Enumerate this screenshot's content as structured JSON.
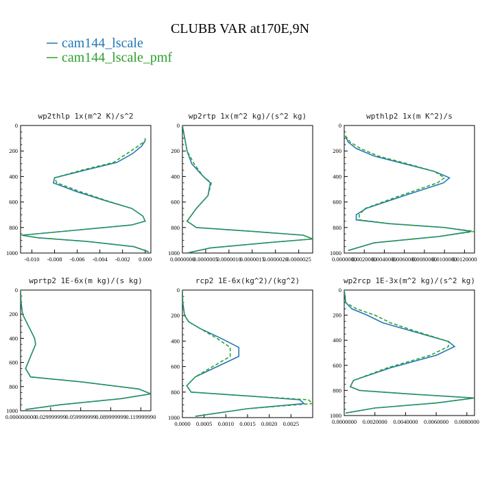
{
  "header": {
    "title": "CLUBB VAR at170E,9N"
  },
  "legend": {
    "items": [
      {
        "label": "cam144_lscale",
        "color": "#1f77b4",
        "dash": "solid"
      },
      {
        "label": "cam144_lscale_pmf",
        "color": "#2ca02c",
        "dash": "dashed"
      }
    ]
  },
  "chart_data": [
    {
      "type": "line",
      "title": "wp2thlp  1x(m^2 K)/s^2",
      "xlim": [
        -0.011,
        0.0005
      ],
      "ylim": [
        1000,
        0
      ],
      "xticks": [
        -0.01,
        -0.008,
        -0.006,
        -0.004,
        -0.002,
        0.0
      ],
      "xtick_labels": [
        "-0.010",
        "-0.008",
        "-0.006",
        "-0.004",
        "-0.002",
        "0.000"
      ],
      "yticks": [
        0,
        200,
        400,
        600,
        800,
        1000
      ],
      "ytick_labels": [
        "0",
        "200",
        "400",
        "600",
        "800",
        "1000"
      ],
      "series": [
        {
          "name": "cam144_lscale",
          "x": [
            0,
            0,
            -0.0003,
            -0.0011,
            -0.0025,
            -0.0053,
            -0.008,
            -0.0081,
            -0.006,
            -0.0035,
            -0.0012,
            -0.0002,
            0.0,
            -0.0012,
            -0.006,
            -0.0109,
            -0.0095,
            -0.005,
            -0.001,
            0.0003
          ],
          "y": [
            100,
            120,
            160,
            220,
            290,
            350,
            410,
            450,
            520,
            590,
            650,
            710,
            750,
            780,
            820,
            860,
            880,
            910,
            950,
            990
          ]
        },
        {
          "name": "cam144_lscale_pmf",
          "x": [
            0,
            0,
            -0.0006,
            -0.0016,
            -0.0028,
            -0.0056,
            -0.008,
            -0.0078,
            -0.0057,
            -0.0034,
            -0.0012,
            -0.0002,
            0.0,
            -0.0012,
            -0.006,
            -0.0109,
            -0.0095,
            -0.005,
            -0.001,
            0.0003
          ],
          "y": [
            100,
            120,
            160,
            220,
            290,
            350,
            410,
            450,
            520,
            590,
            650,
            710,
            750,
            780,
            820,
            860,
            880,
            910,
            950,
            990
          ]
        }
      ]
    },
    {
      "type": "line",
      "title": "wp2rtp  1x(m^2 kg)/(s^2 kg)",
      "xlim": [
        0,
        2.8e-06
      ],
      "ylim": [
        1000,
        0
      ],
      "xticks": [
        0,
        5e-07,
        1e-06,
        1.5e-06,
        2e-06,
        2.5e-06
      ],
      "xtick_labels": [
        "0.0000000",
        "0.0000005",
        "0.0000010",
        "0.0000015",
        "0.0000020",
        "0.0000025"
      ],
      "yticks": [
        0,
        200,
        400,
        600,
        800,
        1000
      ],
      "ytick_labels": [
        "0",
        "200",
        "400",
        "600",
        "800",
        "1000"
      ],
      "series": [
        {
          "name": "cam144_lscale",
          "x": [
            0,
            5e-08,
            1e-07,
            2e-07,
            4.5e-07,
            6e-07,
            5.5e-07,
            3e-07,
            1e-07,
            3e-07,
            1.5e-06,
            2.6e-06,
            2.8e-06,
            1.8e-06,
            6e-07,
            1e-07
          ],
          "y": [
            0,
            100,
            200,
            300,
            400,
            450,
            550,
            650,
            750,
            800,
            830,
            860,
            890,
            920,
            960,
            1000
          ]
        },
        {
          "name": "cam144_lscale_pmf",
          "x": [
            0,
            5e-08,
            1e-07,
            2.5e-07,
            4.5e-07,
            6.2e-07,
            5.5e-07,
            3e-07,
            1e-07,
            3e-07,
            1.5e-06,
            2.6e-06,
            2.8e-06,
            1.8e-06,
            6e-07,
            1e-07
          ],
          "y": [
            0,
            100,
            200,
            300,
            400,
            450,
            550,
            650,
            750,
            800,
            830,
            860,
            890,
            920,
            960,
            1000
          ]
        }
      ]
    },
    {
      "type": "line",
      "title": "wpthlp2  1x(m K^2)/s",
      "xlim": [
        0,
        0.013
      ],
      "ylim": [
        1000,
        0
      ],
      "xticks": [
        0,
        0.002,
        0.004,
        0.006,
        0.008,
        0.01,
        0.012
      ],
      "xtick_labels": [
        "0.0000000",
        "0.0020000",
        "0.0040000",
        "0.0060000",
        "0.0080000",
        "0.0100000",
        "0.0120000"
      ],
      "yticks": [
        0,
        200,
        400,
        600,
        800,
        1000
      ],
      "ytick_labels": [
        "0",
        "200",
        "400",
        "600",
        "800",
        "1000"
      ],
      "series": [
        {
          "name": "cam144_lscale",
          "x": [
            0.0001,
            0.0004,
            0.0012,
            0.003,
            0.006,
            0.009,
            0.0105,
            0.0099,
            0.006,
            0.0022,
            0.0012,
            0.0012,
            0.0045,
            0.01,
            0.0127,
            0.0095,
            0.003,
            0.0004
          ],
          "y": [
            80,
            130,
            180,
            240,
            300,
            360,
            410,
            450,
            550,
            650,
            700,
            740,
            770,
            800,
            830,
            870,
            920,
            980
          ]
        },
        {
          "name": "cam144_lscale_pmf",
          "x": [
            0.0001,
            0.0006,
            0.0016,
            0.0034,
            0.0063,
            0.009,
            0.01,
            0.0093,
            0.0056,
            0.0021,
            0.0015,
            0.0015,
            0.0045,
            0.01,
            0.013,
            0.0095,
            0.003,
            0.0004
          ],
          "y": [
            80,
            130,
            180,
            240,
            300,
            360,
            410,
            450,
            550,
            650,
            700,
            740,
            770,
            800,
            830,
            870,
            920,
            980
          ]
        }
      ]
    },
    {
      "type": "line",
      "title": "wprtp2  1E-6x(m kg)/(s kg)",
      "xlim": [
        0,
        0.13
      ],
      "ylim": [
        1000,
        0
      ],
      "xticks": [
        0,
        0.03,
        0.06,
        0.09,
        0.12
      ],
      "xtick_labels": [
        "0.000000000",
        "0.029999999",
        "0.059999999",
        "0.089999999",
        "0.119999990"
      ],
      "yticks": [
        0,
        200,
        400,
        600,
        800,
        1000
      ],
      "ytick_labels": [
        "0",
        "200",
        "400",
        "600",
        "800",
        "1000"
      ],
      "series": [
        {
          "name": "cam144_lscale",
          "x": [
            0,
            0.0005,
            0.002,
            0.008,
            0.014,
            0.015,
            0.01,
            0.005,
            0.01,
            0.06,
            0.118,
            0.13,
            0.1,
            0.04,
            0.005
          ],
          "y": [
            0,
            100,
            200,
            300,
            400,
            450,
            550,
            650,
            720,
            760,
            820,
            860,
            900,
            950,
            990
          ]
        },
        {
          "name": "cam144_lscale_pmf",
          "x": [
            0,
            0.0005,
            0.002,
            0.008,
            0.014,
            0.015,
            0.01,
            0.005,
            0.01,
            0.06,
            0.118,
            0.13,
            0.1,
            0.04,
            0.005
          ],
          "y": [
            0,
            100,
            200,
            300,
            400,
            450,
            550,
            650,
            720,
            760,
            820,
            860,
            900,
            950,
            990
          ]
        }
      ]
    },
    {
      "type": "line",
      "title": "rcp2  1E-6x(kg^2)/(kg^2)",
      "xlim": [
        0,
        0.003
      ],
      "ylim": [
        1000,
        0
      ],
      "xticks": [
        0,
        0.0005,
        0.001,
        0.0015,
        0.002,
        0.0025
      ],
      "xtick_labels": [
        "0.0000",
        "0.0005",
        "0.0010",
        "0.0015",
        "0.0020",
        "0.0025"
      ],
      "yticks": [
        0,
        200,
        400,
        600,
        800,
        1000
      ],
      "ytick_labels": [
        "0",
        "200",
        "400",
        "600",
        "800",
        "1000"
      ],
      "series": [
        {
          "name": "cam144_lscale",
          "x": [
            0,
            1e-05,
            5e-05,
            0.00015,
            0.0004,
            0.0009,
            0.0013,
            0.0013,
            0.0008,
            0.0003,
            0.0001,
            0.0002,
            0.0015,
            0.0027,
            0.0028,
            0.0015,
            0.0003
          ],
          "y": [
            0,
            100,
            200,
            250,
            300,
            380,
            450,
            520,
            600,
            680,
            750,
            800,
            830,
            860,
            890,
            930,
            990
          ]
        },
        {
          "name": "cam144_lscale_pmf",
          "x": [
            0,
            1e-05,
            5e-05,
            0.00015,
            0.0004,
            0.0008,
            0.0011,
            0.0011,
            0.0007,
            0.0003,
            0.0001,
            0.0002,
            0.0015,
            0.0029,
            0.003,
            0.0015,
            0.0003
          ],
          "y": [
            0,
            100,
            200,
            250,
            300,
            380,
            450,
            520,
            600,
            680,
            750,
            800,
            830,
            860,
            890,
            930,
            990
          ]
        }
      ]
    },
    {
      "type": "line",
      "title": "wp2rcp  1E-3x(m^2 kg)/(s^2 kg)",
      "xlim": [
        0,
        0.0085
      ],
      "ylim": [
        1000,
        0
      ],
      "xticks": [
        0,
        0.002,
        0.004,
        0.006,
        0.008
      ],
      "xtick_labels": [
        "0.0000000",
        "0.0020000",
        "0.0040000",
        "0.0060000",
        "0.0080000"
      ],
      "yticks": [
        0,
        200,
        400,
        600,
        800,
        1000
      ],
      "ytick_labels": [
        "0",
        "200",
        "400",
        "600",
        "800",
        "1000"
      ],
      "series": [
        {
          "name": "cam144_lscale",
          "x": [
            0,
            0.0001,
            0.0005,
            0.0015,
            0.0025,
            0.0045,
            0.0068,
            0.0072,
            0.006,
            0.003,
            0.0006,
            0.0004,
            0.001,
            0.0045,
            0.0085,
            0.006,
            0.002,
            0.0001
          ],
          "y": [
            0,
            100,
            150,
            200,
            260,
            330,
            410,
            450,
            520,
            620,
            720,
            770,
            800,
            830,
            860,
            900,
            940,
            980
          ]
        },
        {
          "name": "cam144_lscale_pmf",
          "x": [
            0,
            0.0001,
            0.0008,
            0.002,
            0.003,
            0.0047,
            0.0068,
            0.0068,
            0.0056,
            0.0028,
            0.0006,
            0.0004,
            0.001,
            0.0045,
            0.0085,
            0.006,
            0.002,
            0.0001
          ],
          "y": [
            0,
            100,
            150,
            200,
            260,
            330,
            410,
            450,
            520,
            620,
            720,
            770,
            800,
            830,
            860,
            900,
            940,
            980
          ]
        }
      ]
    }
  ]
}
